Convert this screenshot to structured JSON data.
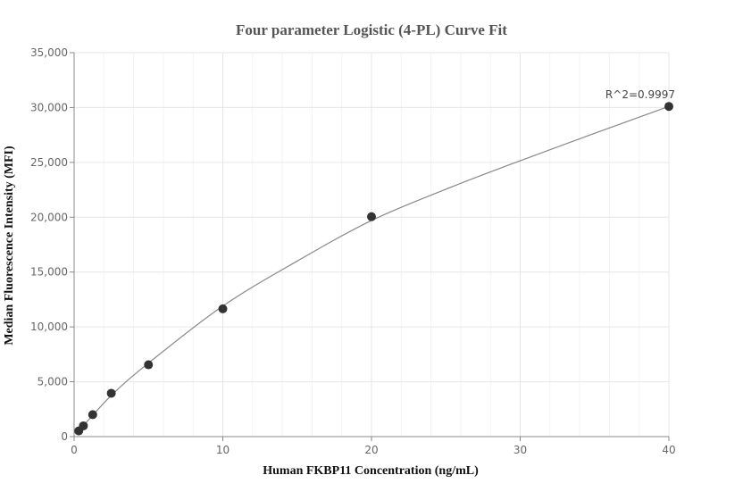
{
  "chart_data": {
    "type": "scatter",
    "title": "Four parameter Logistic (4-PL) Curve Fit",
    "xlabel": "Human FKBP11 Concentration (ng/mL)",
    "ylabel": "Median Fluorescence Intensity (MFI)",
    "xlim": [
      0,
      40
    ],
    "ylim": [
      0,
      35000
    ],
    "x_ticks": [
      0,
      10,
      20,
      30,
      40
    ],
    "x_tick_labels": [
      "0",
      "10",
      "20",
      "30",
      "40"
    ],
    "y_ticks": [
      0,
      5000,
      10000,
      15000,
      20000,
      25000,
      30000,
      35000
    ],
    "y_tick_labels": [
      "0",
      "5,000",
      "10,000",
      "15,000",
      "20,000",
      "25,000",
      "30,000",
      "35,000"
    ],
    "grid": true,
    "legend": "none",
    "series": [
      {
        "x": [
          0.3125,
          0.625,
          1.25,
          2.5,
          5,
          10,
          20,
          40
        ],
        "y": [
          520,
          980,
          2000,
          3950,
          6550,
          11650,
          20050,
          30100
        ]
      }
    ],
    "fit_curve": {
      "x": [
        0.3125,
        2.5,
        5,
        10,
        15,
        20,
        25,
        30,
        35,
        40
      ],
      "y": [
        520,
        3750,
        6700,
        11900,
        16000,
        19700,
        22550,
        25150,
        27650,
        30100
      ]
    },
    "annotation": "R^2=0.9997",
    "colors": {
      "points": "#333333",
      "curve": "#888888",
      "grid": "#e6e6e6"
    }
  }
}
